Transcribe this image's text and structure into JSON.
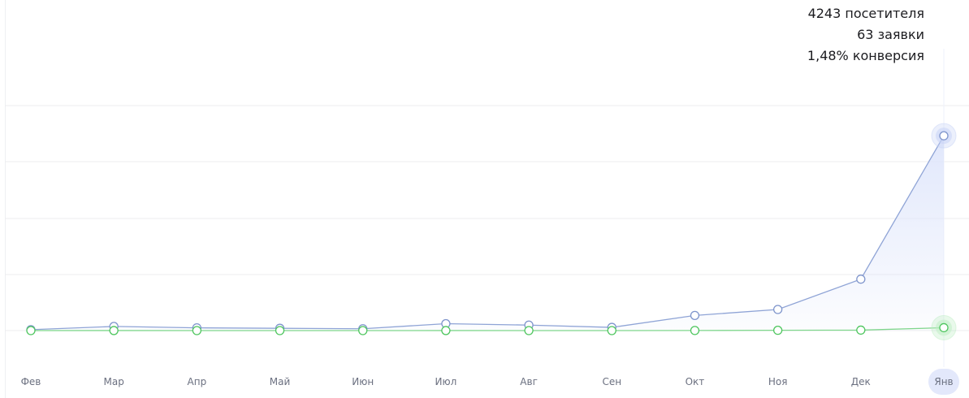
{
  "summary": {
    "visitors": "4243 посетителя",
    "requests": "63 заявки",
    "conversion": "1,48% конверсия"
  },
  "colors": {
    "visitors_line": "#8fa4d6",
    "visitors_fill": "#dfe6fb",
    "requests_line": "#7fd68c",
    "requests_marker": "#4fc65f",
    "grid": "#ececef",
    "active_tick_bg": "#e3e8fb"
  },
  "chart_data": {
    "type": "line",
    "categories": [
      "Фев",
      "Мар",
      "Апр",
      "Май",
      "Июн",
      "Июл",
      "Авг",
      "Сен",
      "Окт",
      "Ноя",
      "Дек",
      "Янв"
    ],
    "series": [
      {
        "key": "visitors",
        "values": [
          20,
          90,
          60,
          50,
          40,
          150,
          120,
          70,
          330,
          460,
          1120,
          4243
        ]
      },
      {
        "key": "requests",
        "values": [
          0,
          1,
          0,
          0,
          0,
          1,
          0,
          0,
          2,
          6,
          10,
          63
        ]
      }
    ],
    "ylim": [
      0,
      4900
    ],
    "grid": true,
    "active_category": "Янв"
  }
}
